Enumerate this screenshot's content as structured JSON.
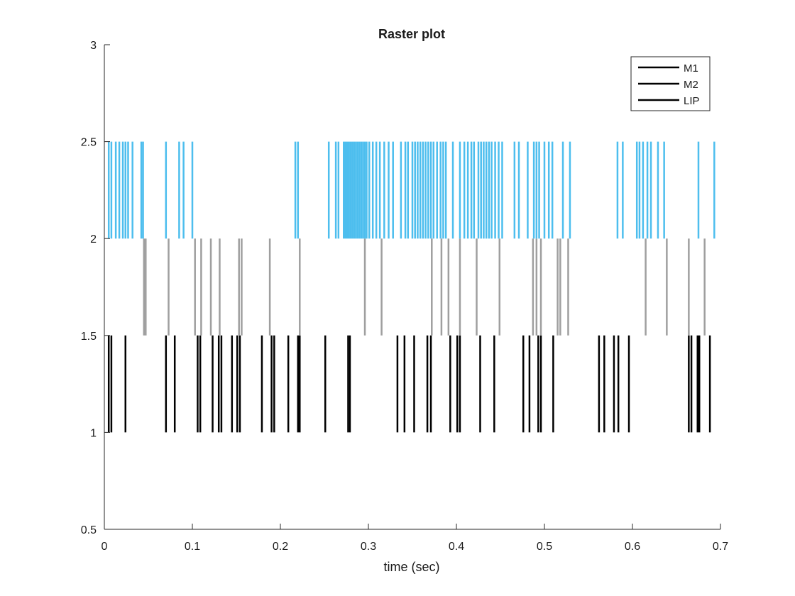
{
  "chart_data": {
    "type": "raster",
    "title": "Raster plot",
    "xlabel": "time (sec)",
    "ylabel": "",
    "xlim": [
      0,
      0.7
    ],
    "ylim": [
      0.5,
      3
    ],
    "xticks": [
      "0",
      "0.1",
      "0.2",
      "0.3",
      "0.4",
      "0.5",
      "0.6",
      "0.7"
    ],
    "yticks": [
      "0.5",
      "1",
      "1.5",
      "2",
      "2.5",
      "3"
    ],
    "xtick_values": [
      0,
      0.1,
      0.2,
      0.3,
      0.4,
      0.5,
      0.6,
      0.7
    ],
    "ytick_values": [
      0.5,
      1,
      1.5,
      2,
      2.5,
      3
    ],
    "grid": false,
    "legend_position": "top-right",
    "series": [
      {
        "name": "M1",
        "color": "#000000",
        "y_range": [
          1,
          1.5
        ],
        "spike_times": [
          0.005,
          0.008,
          0.024,
          0.07,
          0.08,
          0.106,
          0.109,
          0.123,
          0.13,
          0.133,
          0.145,
          0.151,
          0.154,
          0.179,
          0.19,
          0.193,
          0.209,
          0.22,
          0.222,
          0.251,
          0.277,
          0.279,
          0.333,
          0.341,
          0.352,
          0.367,
          0.371,
          0.393,
          0.401,
          0.404,
          0.427,
          0.443,
          0.476,
          0.483,
          0.493,
          0.496,
          0.51,
          0.562,
          0.568,
          0.579,
          0.584,
          0.596,
          0.664,
          0.667,
          0.674,
          0.676,
          0.688
        ]
      },
      {
        "name": "M2",
        "color": "#9f9f9f",
        "y_range": [
          1.5,
          2
        ],
        "spike_times": [
          0.045,
          0.047,
          0.073,
          0.103,
          0.11,
          0.121,
          0.131,
          0.153,
          0.156,
          0.188,
          0.222,
          0.296,
          0.315,
          0.372,
          0.383,
          0.391,
          0.404,
          0.423,
          0.449,
          0.487,
          0.491,
          0.496,
          0.515,
          0.518,
          0.527,
          0.615,
          0.639,
          0.664,
          0.682
        ]
      },
      {
        "name": "LIP",
        "color": "#4dbeee",
        "spike_times": [
          0.005,
          0.008,
          0.013,
          0.017,
          0.021,
          0.024,
          0.027,
          0.032,
          0.042,
          0.044,
          0.07,
          0.085,
          0.09,
          0.1,
          0.217,
          0.22,
          0.255,
          0.263,
          0.266,
          0.272,
          0.274,
          0.276,
          0.278,
          0.28,
          0.282,
          0.284,
          0.286,
          0.288,
          0.29,
          0.292,
          0.294,
          0.296,
          0.298,
          0.301,
          0.305,
          0.309,
          0.313,
          0.318,
          0.323,
          0.328,
          0.337,
          0.342,
          0.345,
          0.35,
          0.353,
          0.356,
          0.359,
          0.362,
          0.365,
          0.368,
          0.371,
          0.374,
          0.378,
          0.382,
          0.385,
          0.388,
          0.396,
          0.404,
          0.409,
          0.413,
          0.417,
          0.42,
          0.425,
          0.428,
          0.431,
          0.434,
          0.437,
          0.44,
          0.444,
          0.448,
          0.452,
          0.466,
          0.471,
          0.481,
          0.488,
          0.491,
          0.494,
          0.5,
          0.505,
          0.509,
          0.521,
          0.529,
          0.583,
          0.589,
          0.605,
          0.608,
          0.612,
          0.617,
          0.621,
          0.629,
          0.636,
          0.675,
          0.693
        ],
        "y_range": [
          2,
          2.5
        ]
      }
    ]
  }
}
